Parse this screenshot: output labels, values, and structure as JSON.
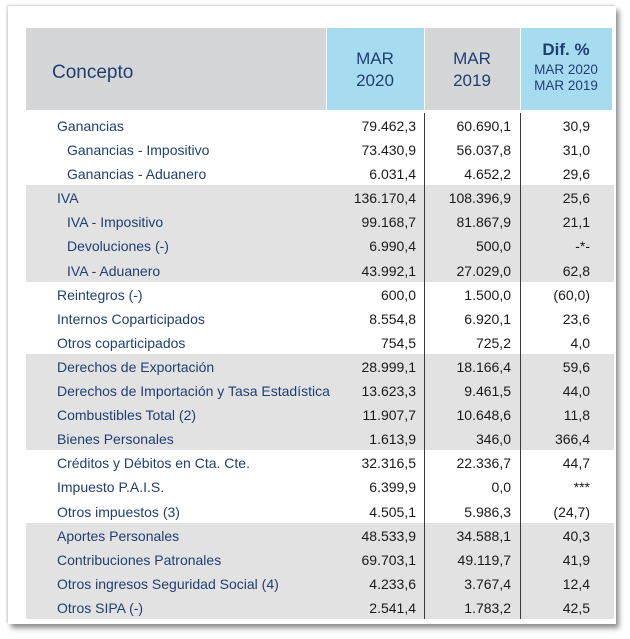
{
  "header": {
    "concepto": "Concepto",
    "mar2020_top": "MAR",
    "mar2020_bot": "2020",
    "mar2019_top": "MAR",
    "mar2019_bot": "2019",
    "dif_title": "Dif. %",
    "dif_sub1": "MAR 2020",
    "dif_sub2": "MAR 2019"
  },
  "groups": [
    {
      "shaded": false,
      "rows": [
        {
          "label": "Ganancias",
          "sub": false,
          "v2020": "79.462,3",
          "v2019": "60.690,1",
          "dif": "30,9"
        },
        {
          "label": "Ganancias - Impositivo",
          "sub": true,
          "v2020": "73.430,9",
          "v2019": "56.037,8",
          "dif": "31,0"
        },
        {
          "label": "Ganancias - Aduanero",
          "sub": true,
          "v2020": "6.031,4",
          "v2019": "4.652,2",
          "dif": "29,6"
        }
      ]
    },
    {
      "shaded": true,
      "rows": [
        {
          "label": "IVA",
          "sub": false,
          "v2020": "136.170,4",
          "v2019": "108.396,9",
          "dif": "25,6"
        },
        {
          "label": "IVA - Impositivo",
          "sub": true,
          "v2020": "99.168,7",
          "v2019": "81.867,9",
          "dif": "21,1"
        },
        {
          "label": "Devoluciones (-)",
          "sub": true,
          "v2020": "6.990,4",
          "v2019": "500,0",
          "dif": "-*-"
        },
        {
          "label": "IVA - Aduanero",
          "sub": true,
          "v2020": "43.992,1",
          "v2019": "27.029,0",
          "dif": "62,8"
        }
      ]
    },
    {
      "shaded": false,
      "rows": [
        {
          "label": "Reintegros (-)",
          "sub": false,
          "v2020": "600,0",
          "v2019": "1.500,0",
          "dif": "(60,0)"
        },
        {
          "label": "Internos Coparticipados",
          "sub": false,
          "v2020": "8.554,8",
          "v2019": "6.920,1",
          "dif": "23,6"
        },
        {
          "label": "Otros coparticipados",
          "sub": false,
          "v2020": "754,5",
          "v2019": "725,2",
          "dif": "4,0"
        }
      ]
    },
    {
      "shaded": true,
      "rows": [
        {
          "label": "Derechos de Exportación",
          "sub": false,
          "v2020": "28.999,1",
          "v2019": "18.166,4",
          "dif": "59,6"
        },
        {
          "label": "Derechos de Importación y Tasa Estadística",
          "sub": false,
          "v2020": "13.623,3",
          "v2019": "9.461,5",
          "dif": "44,0"
        },
        {
          "label": "Combustibles Total (2)",
          "sub": false,
          "v2020": "11.907,7",
          "v2019": "10.648,6",
          "dif": "11,8"
        },
        {
          "label": "Bienes Personales",
          "sub": false,
          "v2020": "1.613,9",
          "v2019": "346,0",
          "dif": "366,4"
        }
      ]
    },
    {
      "shaded": false,
      "rows": [
        {
          "label": "Créditos y Débitos en Cta. Cte.",
          "sub": false,
          "v2020": "32.316,5",
          "v2019": "22.336,7",
          "dif": "44,7"
        },
        {
          "label": "Impuesto P.A.I.S.",
          "sub": false,
          "v2020": "6.399,9",
          "v2019": "0,0",
          "dif": "***"
        },
        {
          "label": "Otros impuestos   (3)",
          "sub": false,
          "v2020": "4.505,1",
          "v2019": "5.986,3",
          "dif": "(24,7)"
        }
      ]
    },
    {
      "shaded": true,
      "rows": [
        {
          "label": "Aportes Personales",
          "sub": false,
          "v2020": "48.533,9",
          "v2019": "34.588,1",
          "dif": "40,3"
        },
        {
          "label": "Contribuciones Patronales",
          "sub": false,
          "v2020": "69.703,1",
          "v2019": "49.119,7",
          "dif": "41,9"
        },
        {
          "label": "Otros ingresos Seguridad Social  (4)",
          "sub": false,
          "v2020": "4.233,6",
          "v2019": "3.767,4",
          "dif": "12,4"
        },
        {
          "label": "Otros SIPA (-)",
          "sub": false,
          "v2020": "2.541,4",
          "v2019": "1.783,2",
          "dif": "42,5"
        }
      ]
    }
  ]
}
